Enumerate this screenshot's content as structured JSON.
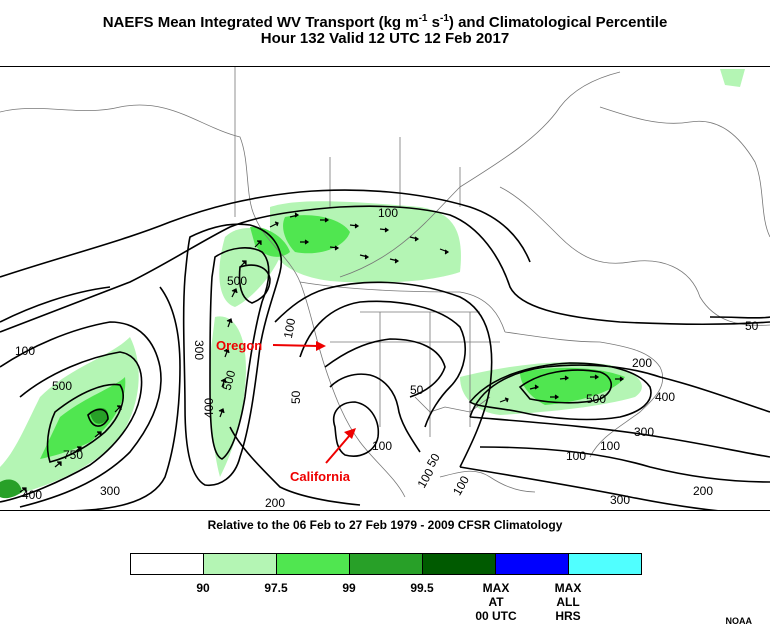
{
  "title": {
    "line1": "NAEFS Mean Integrated WV Transport (kg m⁻¹ s⁻¹) and Climatological Percentile",
    "line2": "Hour 132 Valid 12 UTC 12 Feb 2017"
  },
  "map": {
    "annotations": {
      "oregon": "Oregon",
      "california": "California"
    },
    "arrow_color": "#ee0000",
    "contour_labels": [
      "100",
      "500",
      "500",
      "300",
      "400",
      "500",
      "100",
      "750",
      "400",
      "300",
      "200",
      "100",
      "50",
      "50",
      "50",
      "100",
      "100",
      "50",
      "200",
      "400",
      "500",
      "300",
      "100",
      "200",
      "300",
      "100",
      "100"
    ]
  },
  "climatology_note": "Relative to the 06 Feb to 27 Feb 1979 - 2009 CFSR Climatology",
  "legend": {
    "colors": [
      "#ffffff",
      "#b4f5b4",
      "#50e650",
      "#28a028",
      "#005a00",
      "#0000ff",
      "#50ffff"
    ],
    "ticks": [
      "90",
      "97.5",
      "99",
      "99.5",
      "MAX AT 00 UTC",
      "MAX ALL HRS"
    ],
    "tick_lines": [
      [
        "90"
      ],
      [
        "97.5"
      ],
      [
        "99"
      ],
      [
        "99.5"
      ],
      [
        "MAX",
        "AT",
        "00 UTC"
      ],
      [
        "MAX",
        "ALL",
        "HRS"
      ]
    ]
  },
  "credit": "NOAA"
}
